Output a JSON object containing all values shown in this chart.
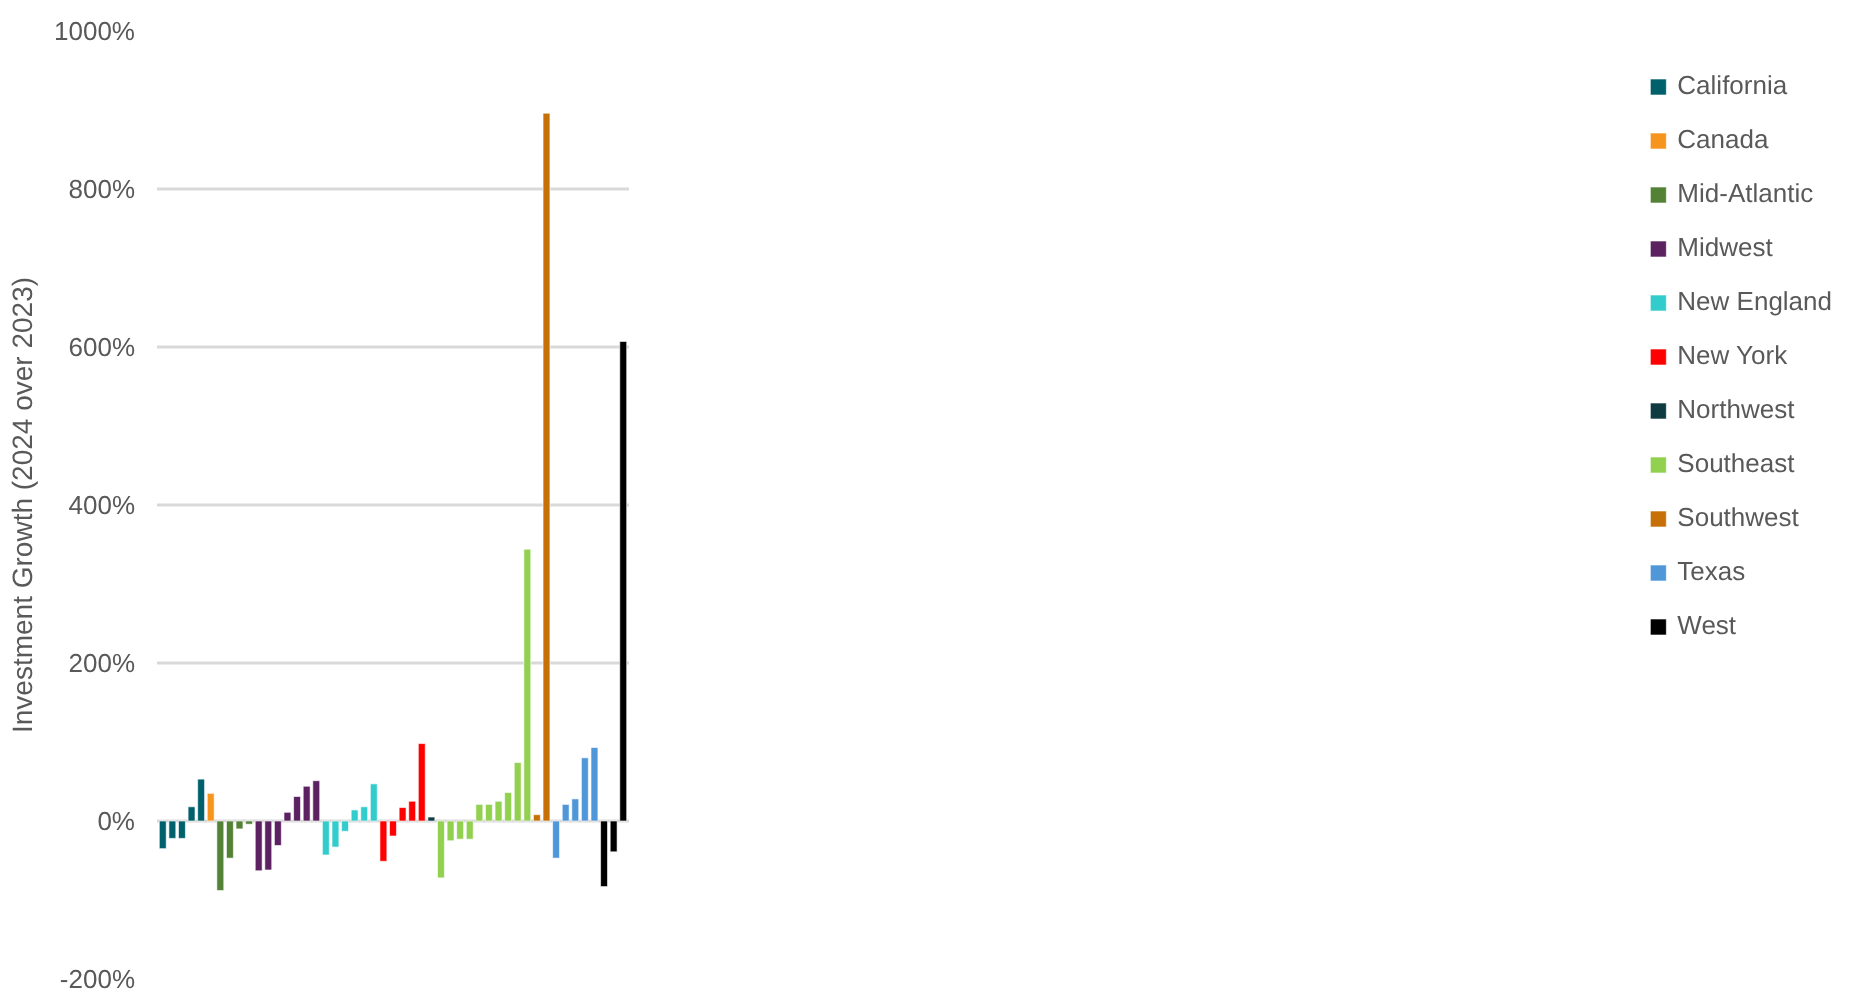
{
  "chart_data": {
    "type": "bar",
    "stacked": true,
    "ylabel": "Investment Growth (2024 over 2023)",
    "categories": [
      null,
      null,
      null,
      null,
      null,
      null,
      null,
      null,
      null,
      null,
      null,
      null,
      null,
      null,
      null,
      null,
      null,
      null,
      null,
      null,
      null,
      null,
      null,
      null,
      null,
      null,
      null,
      null,
      null,
      null,
      null,
      null,
      null,
      null,
      null,
      null,
      null,
      null,
      null,
      null,
      null,
      null,
      null,
      null,
      null,
      null,
      null,
      null,
      null
    ],
    "series": [
      {
        "name": "California",
        "color": "#00606b",
        "values": [
          -35,
          -22,
          -22,
          18,
          53,
          null,
          null,
          null,
          null,
          null,
          null,
          null,
          null,
          null,
          null,
          null,
          null,
          null,
          null,
          null,
          null,
          null,
          null,
          null,
          null,
          null,
          null,
          null,
          null,
          null,
          null,
          null,
          null,
          null,
          null,
          null,
          null,
          null,
          null,
          null,
          null,
          null,
          null,
          null,
          null,
          null,
          null,
          null,
          null
        ]
      },
      {
        "name": "Canada",
        "color": "#f7941d",
        "values": [
          null,
          null,
          null,
          null,
          null,
          35,
          null,
          null,
          null,
          null,
          null,
          null,
          null,
          null,
          null,
          null,
          null,
          null,
          null,
          null,
          null,
          null,
          null,
          null,
          null,
          null,
          null,
          null,
          null,
          null,
          null,
          null,
          null,
          null,
          null,
          null,
          null,
          null,
          null,
          null,
          null,
          null,
          null,
          null,
          null,
          null,
          null,
          null,
          null
        ]
      },
      {
        "name": "Mid-Atlantic",
        "color": "#538135",
        "values": [
          null,
          null,
          null,
          null,
          null,
          null,
          -88,
          -47,
          -10,
          -4,
          null,
          null,
          null,
          null,
          null,
          null,
          null,
          null,
          null,
          null,
          null,
          null,
          null,
          null,
          null,
          null,
          null,
          null,
          null,
          null,
          null,
          null,
          null,
          null,
          null,
          null,
          null,
          null,
          null,
          null,
          null,
          null,
          null,
          null,
          null,
          null,
          null,
          null,
          null
        ]
      },
      {
        "name": "Midwest",
        "color": "#5b2160",
        "values": [
          null,
          null,
          null,
          null,
          null,
          null,
          null,
          null,
          null,
          null,
          -63,
          -62,
          -31,
          11,
          31,
          44,
          51,
          null,
          null,
          null,
          null,
          null,
          null,
          null,
          null,
          null,
          null,
          null,
          null,
          null,
          null,
          null,
          null,
          null,
          null,
          null,
          null,
          null,
          null,
          null,
          null,
          null,
          null,
          null,
          null,
          null,
          null,
          null,
          null
        ]
      },
      {
        "name": "New England",
        "color": "#33cccc",
        "values": [
          null,
          null,
          null,
          null,
          null,
          null,
          null,
          null,
          null,
          null,
          null,
          null,
          null,
          null,
          null,
          null,
          null,
          -43,
          -33,
          -13,
          14,
          18,
          47,
          null,
          null,
          null,
          null,
          null,
          null,
          null,
          null,
          null,
          null,
          null,
          null,
          null,
          null,
          null,
          null,
          null,
          null,
          null,
          null,
          null,
          null,
          null,
          null,
          null,
          null
        ]
      },
      {
        "name": "New York",
        "color": "#ff0000",
        "values": [
          null,
          null,
          null,
          null,
          null,
          null,
          null,
          null,
          null,
          null,
          null,
          null,
          null,
          null,
          null,
          null,
          null,
          null,
          null,
          null,
          null,
          null,
          null,
          -51,
          -19,
          17,
          25,
          98,
          null,
          null,
          null,
          null,
          null,
          null,
          null,
          null,
          null,
          null,
          null,
          null,
          null,
          null,
          null,
          null,
          null,
          null,
          null,
          null,
          null
        ]
      },
      {
        "name": "Northwest",
        "color": "#0d3b40",
        "values": [
          null,
          null,
          null,
          null,
          null,
          null,
          null,
          null,
          null,
          null,
          null,
          null,
          null,
          null,
          null,
          null,
          null,
          null,
          null,
          null,
          null,
          null,
          null,
          null,
          null,
          null,
          null,
          null,
          5,
          null,
          null,
          null,
          null,
          null,
          null,
          null,
          null,
          null,
          null,
          null,
          null,
          null,
          null,
          null,
          null,
          null,
          null,
          null,
          null
        ]
      },
      {
        "name": "Southeast",
        "color": "#92d050",
        "values": [
          null,
          null,
          null,
          null,
          null,
          null,
          null,
          null,
          null,
          null,
          null,
          null,
          null,
          null,
          null,
          null,
          null,
          null,
          null,
          null,
          null,
          null,
          null,
          null,
          null,
          null,
          null,
          null,
          null,
          -72,
          -25,
          -23,
          -23,
          21,
          21,
          25,
          36,
          74,
          344,
          null,
          null,
          null,
          null,
          null,
          null,
          null,
          null,
          null,
          null
        ]
      },
      {
        "name": "Southwest",
        "color": "#c87008",
        "values": [
          null,
          null,
          null,
          null,
          null,
          null,
          null,
          null,
          null,
          null,
          null,
          null,
          null,
          null,
          null,
          null,
          null,
          null,
          null,
          null,
          null,
          null,
          null,
          null,
          null,
          null,
          null,
          null,
          null,
          null,
          null,
          null,
          null,
          null,
          null,
          null,
          null,
          null,
          null,
          8,
          896,
          null,
          null,
          null,
          null,
          null,
          null,
          null,
          null
        ]
      },
      {
        "name": "Texas",
        "color": "#4f97d9",
        "values": [
          null,
          null,
          null,
          null,
          null,
          null,
          null,
          null,
          null,
          null,
          null,
          null,
          null,
          null,
          null,
          null,
          null,
          null,
          null,
          null,
          null,
          null,
          null,
          null,
          null,
          null,
          null,
          null,
          null,
          null,
          null,
          null,
          null,
          null,
          null,
          null,
          null,
          null,
          null,
          null,
          null,
          -47,
          21,
          28,
          80,
          93,
          null,
          null,
          null
        ]
      },
      {
        "name": "West",
        "color": "#000000",
        "values": [
          null,
          null,
          null,
          null,
          null,
          null,
          null,
          null,
          null,
          null,
          null,
          null,
          null,
          null,
          null,
          null,
          null,
          null,
          null,
          null,
          null,
          null,
          null,
          null,
          null,
          null,
          null,
          null,
          null,
          null,
          null,
          null,
          null,
          null,
          null,
          null,
          null,
          null,
          null,
          null,
          null,
          null,
          null,
          null,
          null,
          null,
          -83,
          -39,
          607
        ]
      }
    ],
    "ylim": [
      -200,
      1000
    ],
    "yticks": [
      {
        "value": -200,
        "label": "-200%"
      },
      {
        "value": 0,
        "label": "0%"
      },
      {
        "value": 200,
        "label": "200%"
      },
      {
        "value": 400,
        "label": "400%"
      },
      {
        "value": 600,
        "label": "600%"
      },
      {
        "value": 800,
        "label": "800%"
      },
      {
        "value": 1000,
        "label": "1000%"
      }
    ],
    "grid": "y",
    "legend": "right",
    "tick_labels": "y"
  }
}
